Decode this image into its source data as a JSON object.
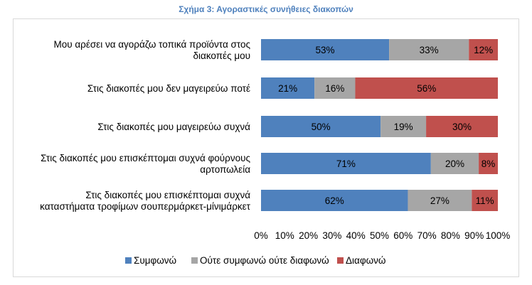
{
  "colors": {
    "title": "#4f81bd",
    "frame": "#d9d9d9"
  },
  "chart_data": {
    "type": "bar",
    "orientation": "horizontal",
    "stacked": "percent",
    "title": "Σχήμα 3: Αγοραστικές συνήθειες διακοπών",
    "categories": [
      [
        "Μου αρέσει να αγοράζω τοπικά προϊόντα στος",
        "διακοπές μου"
      ],
      [
        "Στις διακοπές μου δεν μαγειρεύω ποτέ"
      ],
      [
        "Στις διακοπές μου μαγειρεύω συχνά"
      ],
      [
        "Στις διακοπές μου επισκέπτομαι συχνά φούρνους",
        "αρτοπωλεία"
      ],
      [
        "Στις διακοπές μου επισκέπτομαι συχνά",
        "καταστήματα τροφίμων σουπερμάρκετ-μίνιμάρκετ"
      ]
    ],
    "series": [
      {
        "name": "Συμφωνώ",
        "color": "#4f81bd",
        "values": [
          53,
          21,
          50,
          71,
          62
        ],
        "labels": [
          "53%",
          "21%",
          "50%",
          "71%",
          "62%"
        ]
      },
      {
        "name": "Ούτε συμφωνώ ούτε διαφωνώ",
        "color": "#a6a6a6",
        "values": [
          33,
          16,
          19,
          20,
          27
        ],
        "labels": [
          "33%",
          "16%",
          "19%",
          "20%",
          "27%"
        ]
      },
      {
        "name": "Διαφωνώ",
        "color": "#c0504d",
        "values": [
          12,
          56,
          30,
          8,
          11
        ],
        "labels": [
          "12%",
          "56%",
          "30%",
          "8%",
          "11%"
        ]
      }
    ],
    "xlim": [
      0,
      100
    ],
    "xticks": [
      "0%",
      "10%",
      "20%",
      "30%",
      "40%",
      "50%",
      "60%",
      "70%",
      "80%",
      "90%",
      "100%"
    ],
    "grid": false,
    "legend_position": "bottom"
  }
}
